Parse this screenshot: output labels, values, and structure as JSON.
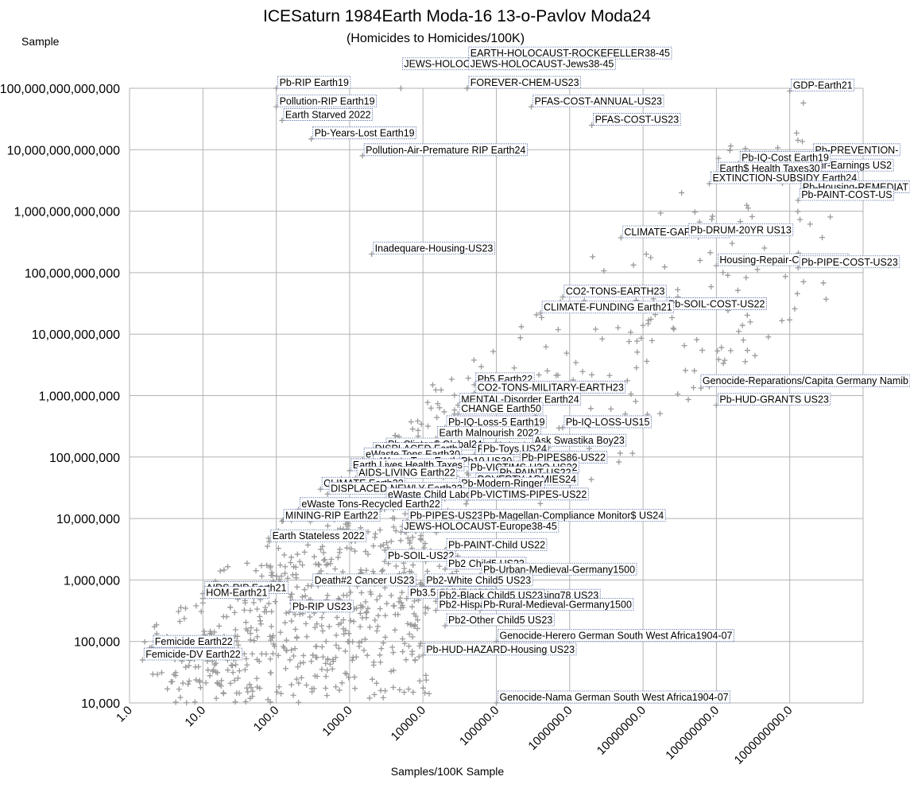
{
  "chart_data": {
    "type": "scatter",
    "title": "ICESaturn 1984Earth Moda-16 13-o-Pavlov Moda24",
    "subtitle": "(Homicides to Homicides/100K)",
    "ylabel": "Sample",
    "xlabel": "Samples/100K Sample",
    "x_scale": "log",
    "y_scale": "log",
    "xlim": [
      1,
      10000000000
    ],
    "ylim": [
      10000,
      100000000000000
    ],
    "grid": true,
    "legend": "none",
    "marker": "plus",
    "marker_color": "#9a9a9a",
    "x_tick_labels": [
      "1.0",
      "10.0",
      "100.0",
      "1000.0",
      "10000.0",
      "100000.0",
      "1000000.0",
      "10000000.0",
      "100000000.0",
      "1000000000.0"
    ],
    "y_tick_labels": [
      "10,000",
      "100,000",
      "1,000,000",
      "10,000,000",
      "100,000,000",
      "1,000,000,000",
      "10,000,000,000",
      "100,000,000,000",
      "1,000,000,000,000",
      "10,000,000,000,000",
      "100,000,000,000,000"
    ],
    "labeled_points": [
      {
        "label": "GDP-Earth21",
        "x": 1000000000,
        "y": 90000000000000
      },
      {
        "label": "Pb-PREVENTION-",
        "x": 2000000000,
        "y": 8000000000000
      },
      {
        "label": "Clean-Air-Earnings US2",
        "x": 800000000,
        "y": 4500000000000
      },
      {
        "label": "Pb-IQ-Cost Earth19",
        "x": 200000000,
        "y": 6000000000000
      },
      {
        "label": "Earth$ Health Taxes30",
        "x": 100000000,
        "y": 4000000000000
      },
      {
        "label": "EXTINCTION-SUBSIDY Earth24",
        "x": 80000000,
        "y": 2800000000000
      },
      {
        "label": "Pb-Housing-REMEDIAT",
        "x": 1500000000,
        "y": 2000000000000
      },
      {
        "label": "Pb-PAINT-COST-US",
        "x": 1300000000,
        "y": 1500000000000
      },
      {
        "label": "CLIMATE-GAP Earth23",
        "x": 5000000,
        "y": 370000000000
      },
      {
        "label": "Pb-DRUM-20YR US13",
        "x": 40000000,
        "y": 400000000000
      },
      {
        "label": "Housing-Repair-COST-US23",
        "x": 100000000,
        "y": 130000000000
      },
      {
        "label": "Pb-PIPE-COST-US23",
        "x": 1300000000,
        "y": 120000000000
      },
      {
        "label": "CO2-TONS-EARTH23",
        "x": 800000,
        "y": 40000000000
      },
      {
        "label": "Pb-SOIL-COST-US22",
        "x": 20000000,
        "y": 25000000000
      },
      {
        "label": "CLIMATE-FUNDING Earth21",
        "x": 400000,
        "y": 22000000000
      },
      {
        "label": "Pb5 Earth22",
        "x": 50000,
        "y": 1500000000
      },
      {
        "label": "CO2-TONS-MILITARY-EARTH23",
        "x": 50000,
        "y": 1100000000
      },
      {
        "label": "MENTAL-Disorder Earth24",
        "x": 30000,
        "y": 700000000
      },
      {
        "label": "CHANGE Earth50",
        "x": 30000,
        "y": 500000000
      },
      {
        "label": "Genocide-Reparations/Capita Germany Namib",
        "x": 80000000,
        "y": 1400000000
      },
      {
        "label": "Pb-IQ-LOSS-US15",
        "x": 800000,
        "y": 300000000
      },
      {
        "label": "Pb-IQ-Loss-5 Earth19",
        "x": 20000,
        "y": 300000000
      },
      {
        "label": "Earth Malnourish 2022",
        "x": 15000,
        "y": 200000000
      },
      {
        "label": "Ask Swastika Boy23",
        "x": 300000,
        "y": 150000000
      },
      {
        "label": "Pb-HUD-GRANTS US23",
        "x": 100000000,
        "y": 700000000
      },
      {
        "label": "Pb-Clinton$ Global24",
        "x": 3000,
        "y": 130000000
      },
      {
        "label": "DISPLACED Earth",
        "x": 2000,
        "y": 110000000
      },
      {
        "label": "Pb-Nazis",
        "x": 50000,
        "y": 110000000
      },
      {
        "label": "Pb-Toys US24",
        "x": 60000,
        "y": 110000000
      },
      {
        "label": "eWaste Tons Earth30",
        "x": 1500,
        "y": 90000000
      },
      {
        "label": "Pb-PIPES86-US22",
        "x": 200000,
        "y": 80000000
      },
      {
        "label": "eWaste Tons Earth24",
        "x": 2000,
        "y": 70000000
      },
      {
        "label": "Pb10 US30",
        "x": 30000,
        "y": 70000000
      },
      {
        "label": "Earth Lives Health Taxes",
        "x": 1000,
        "y": 60000000
      },
      {
        "label": "Pb-VICTIMS-H2O US22",
        "x": 40000,
        "y": 55000000
      },
      {
        "label": "AIDS-LIVING Earth22",
        "x": 1200,
        "y": 45000000
      },
      {
        "label": "Pb-PAINT-US22",
        "x": 100000,
        "y": 45000000
      },
      {
        "label": "POVERTY-ARMIES24",
        "x": 50000,
        "y": 35000000
      },
      {
        "label": "CLIMATE Earth22",
        "x": 400,
        "y": 30000000
      },
      {
        "label": "Pb-Modern-Ringer",
        "x": 30000,
        "y": 30000000
      },
      {
        "label": "DISPLACED-NEWLY Earth22",
        "x": 500,
        "y": 25000000
      },
      {
        "label": "eWaste Child Labor Earth22",
        "x": 3000,
        "y": 20000000
      },
      {
        "label": "Pb-VICTIMS-PIPES-US22",
        "x": 40000,
        "y": 20000000
      },
      {
        "label": "eWaste Tons-Recycled Earth22",
        "x": 200,
        "y": 14000000
      },
      {
        "label": "MINING-RIP Earth22",
        "x": 120,
        "y": 9000000
      },
      {
        "label": "Pb-PIPES-US23",
        "x": 6000,
        "y": 9000000
      },
      {
        "label": "Pb-Magellan-Compliance Monitor$ US24",
        "x": 60000,
        "y": 9000000
      },
      {
        "label": "JEWS-HOLOCAUST-Europe38-45",
        "x": 5000,
        "y": 6000000
      },
      {
        "label": "Earth Stateless 2022",
        "x": 80,
        "y": 4200000
      },
      {
        "label": "Pb-SOIL-US22",
        "x": 3000,
        "y": 2000000
      },
      {
        "label": "Pb-PAINT-Child US22",
        "x": 20000,
        "y": 3000000
      },
      {
        "label": "Pb2 Child5 US23",
        "x": 20000,
        "y": 1500000
      },
      {
        "label": "Pb-Urban-Medieval-Germany1500",
        "x": 60000,
        "y": 1200000
      },
      {
        "label": "Death#2 Cancer US23",
        "x": 300,
        "y": 800000
      },
      {
        "label": "Pb2-White Child5 US23",
        "x": 10000,
        "y": 800000
      },
      {
        "label": "AIDS-RIP Earth21",
        "x": 10,
        "y": 600000
      },
      {
        "label": "HOM-Earth21",
        "x": 10,
        "y": 500000
      },
      {
        "label": "Pb3.5 Child5 US23",
        "x": 6000,
        "y": 500000
      },
      {
        "label": "Pb-HUD-Housing78 US23",
        "x": 60000,
        "y": 450000
      },
      {
        "label": "Pb2-Black Child5 US23",
        "x": 15000,
        "y": 450000
      },
      {
        "label": "Pb-RIP US23",
        "x": 150,
        "y": 300000
      },
      {
        "label": "Pb2-Hispanic Child5 US23",
        "x": 15000,
        "y": 320000
      },
      {
        "label": "Pb-Rural-Medieval-Germany1500",
        "x": 60000,
        "y": 320000
      },
      {
        "label": "Pb2-Other Child5 US23",
        "x": 20000,
        "y": 180000
      },
      {
        "label": "Genocide-Herero German South West Africa1904-07",
        "x": 100000,
        "y": 100000
      },
      {
        "label": "Femicide Earth22",
        "x": 2,
        "y": 80000
      },
      {
        "label": "Femicide-DV Earth22",
        "x": 1.5,
        "y": 50000
      },
      {
        "label": "Pb-HUD-HAZARD-Housing US23",
        "x": 10000,
        "y": 60000
      },
      {
        "label": "Genocide-Nama German South West Africa1904-07",
        "x": 100000,
        "y": 10000
      },
      {
        "label": "Pb-RIP Earth19",
        "x": 100,
        "y": 100000000000000
      },
      {
        "label": "Pollution-RIP Earth19",
        "x": 100,
        "y": 50000000000000
      },
      {
        "label": "Earth Starved 2022",
        "x": 120,
        "y": 30000000000000
      },
      {
        "label": "Pb-Years-Lost Earth19",
        "x": 300,
        "y": 15000000000000
      },
      {
        "label": "Pollution-Air-Premature RIP Earth24",
        "x": 1500,
        "y": 8000000000000
      },
      {
        "label": "JEWS-HOLOCAUST-Earth38-45",
        "x": 5000,
        "y": 200000000000000
      },
      {
        "label": "EARTH-HOLOCAUST-ROCKEFELLER38-45",
        "x": 40000,
        "y": 300000000000000
      },
      {
        "label": "JEWS-HOLOCAUST-Jews38-45",
        "x": 40000,
        "y": 200000000000000
      },
      {
        "label": "FOREVER-CHEM-US23",
        "x": 40000,
        "y": 100000000000000
      },
      {
        "label": "PFAS-COST-ANNUAL-US23",
        "x": 300000,
        "y": 50000000000000
      },
      {
        "label": "PFAS-COST-US23",
        "x": 2000000,
        "y": 25000000000000
      },
      {
        "label": "Inadequare-Housing-US23",
        "x": 2000,
        "y": 200000000000
      }
    ]
  }
}
